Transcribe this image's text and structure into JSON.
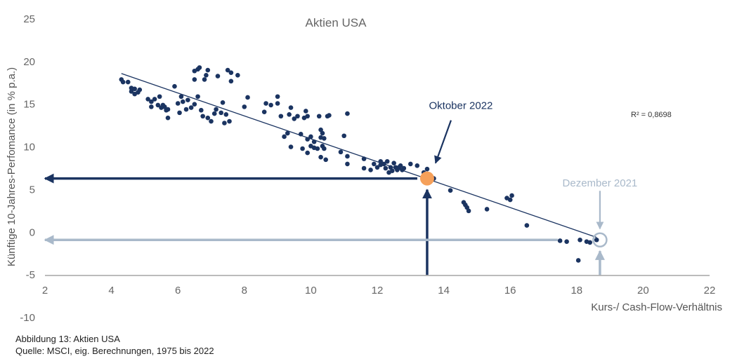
{
  "chart_data": {
    "type": "scatter",
    "title": "Aktien USA",
    "xlabel": "Kurs-/ Cash-Flow-Verhältnis",
    "ylabel": "Künftige 10-Jahres-Perfomance (in % p.a.)",
    "xlim": [
      2,
      22
    ],
    "ylim": [
      -10,
      25
    ],
    "x_ticks": [
      2,
      4,
      6,
      8,
      10,
      12,
      14,
      16,
      18,
      20,
      22
    ],
    "y_ticks": [
      -10,
      -5,
      0,
      5,
      10,
      15,
      20,
      25
    ],
    "grid": false,
    "r_squared_label": "R² = 0,8698",
    "trendline": {
      "x": [
        4.3,
        18.6
      ],
      "y": [
        18.6,
        -0.6
      ]
    },
    "series": [
      {
        "color": "#1b3461",
        "points": [
          [
            4.3,
            17.9
          ],
          [
            4.35,
            17.6
          ],
          [
            4.5,
            17.6
          ],
          [
            4.6,
            16.9
          ],
          [
            4.6,
            16.5
          ],
          [
            4.7,
            16.8
          ],
          [
            4.7,
            16.2
          ],
          [
            4.8,
            16.4
          ],
          [
            4.85,
            16.7
          ],
          [
            5.1,
            15.6
          ],
          [
            5.2,
            15.3
          ],
          [
            5.2,
            14.7
          ],
          [
            5.3,
            15.6
          ],
          [
            5.4,
            14.9
          ],
          [
            5.45,
            15.9
          ],
          [
            5.5,
            14.6
          ],
          [
            5.55,
            14.9
          ],
          [
            5.6,
            14.7
          ],
          [
            5.65,
            14.3
          ],
          [
            5.7,
            13.4
          ],
          [
            5.7,
            14.4
          ],
          [
            5.9,
            17.1
          ],
          [
            6.0,
            15.1
          ],
          [
            6.05,
            14.0
          ],
          [
            6.1,
            15.9
          ],
          [
            6.15,
            15.3
          ],
          [
            6.25,
            14.4
          ],
          [
            6.3,
            15.5
          ],
          [
            6.4,
            14.6
          ],
          [
            6.5,
            18.9
          ],
          [
            6.5,
            15.0
          ],
          [
            6.5,
            17.9
          ],
          [
            6.6,
            15.9
          ],
          [
            6.6,
            19.1
          ],
          [
            6.65,
            19.3
          ],
          [
            6.7,
            14.3
          ],
          [
            6.75,
            13.6
          ],
          [
            6.8,
            17.9
          ],
          [
            6.85,
            18.4
          ],
          [
            6.9,
            19.0
          ],
          [
            6.9,
            13.4
          ],
          [
            7.0,
            13.0
          ],
          [
            7.1,
            13.9
          ],
          [
            7.15,
            14.4
          ],
          [
            7.2,
            18.3
          ],
          [
            7.3,
            14.0
          ],
          [
            7.35,
            15.2
          ],
          [
            7.4,
            12.8
          ],
          [
            7.45,
            13.8
          ],
          [
            7.5,
            19.0
          ],
          [
            7.55,
            13.0
          ],
          [
            7.6,
            18.7
          ],
          [
            7.6,
            17.7
          ],
          [
            7.8,
            18.4
          ],
          [
            8.0,
            14.7
          ],
          [
            8.1,
            15.8
          ],
          [
            8.6,
            14.1
          ],
          [
            8.65,
            15.1
          ],
          [
            8.8,
            14.9
          ],
          [
            9.0,
            15.9
          ],
          [
            9.0,
            15.1
          ],
          [
            9.1,
            13.6
          ],
          [
            9.2,
            11.2
          ],
          [
            9.3,
            11.6
          ],
          [
            9.35,
            13.8
          ],
          [
            9.4,
            14.6
          ],
          [
            9.4,
            10.0
          ],
          [
            9.5,
            13.3
          ],
          [
            9.6,
            13.6
          ],
          [
            9.7,
            11.5
          ],
          [
            9.75,
            9.8
          ],
          [
            9.8,
            13.4
          ],
          [
            9.85,
            14.2
          ],
          [
            9.9,
            10.9
          ],
          [
            9.9,
            13.6
          ],
          [
            9.9,
            9.3
          ],
          [
            10.0,
            11.2
          ],
          [
            10.0,
            10.1
          ],
          [
            10.1,
            10.6
          ],
          [
            10.1,
            9.9
          ],
          [
            10.2,
            9.8
          ],
          [
            10.25,
            13.6
          ],
          [
            10.3,
            11.1
          ],
          [
            10.3,
            8.8
          ],
          [
            10.3,
            12.0
          ],
          [
            10.35,
            11.6
          ],
          [
            10.35,
            10.1
          ],
          [
            10.4,
            9.8
          ],
          [
            10.4,
            11.0
          ],
          [
            10.45,
            8.5
          ],
          [
            10.5,
            13.6
          ],
          [
            10.55,
            13.7
          ],
          [
            10.9,
            9.4
          ],
          [
            11.0,
            11.3
          ],
          [
            11.1,
            8.0
          ],
          [
            11.1,
            13.9
          ],
          [
            11.1,
            8.9
          ],
          [
            11.6,
            8.6
          ],
          [
            11.6,
            7.5
          ],
          [
            11.8,
            7.3
          ],
          [
            11.9,
            8.0
          ],
          [
            12.0,
            7.6
          ],
          [
            12.1,
            8.3
          ],
          [
            12.1,
            7.9
          ],
          [
            12.2,
            8.0
          ],
          [
            12.25,
            7.5
          ],
          [
            12.3,
            8.3
          ],
          [
            12.35,
            7.0
          ],
          [
            12.4,
            7.6
          ],
          [
            12.45,
            7.2
          ],
          [
            12.5,
            8.1
          ],
          [
            12.55,
            7.6
          ],
          [
            12.6,
            7.3
          ],
          [
            12.65,
            7.6
          ],
          [
            12.7,
            7.8
          ],
          [
            12.75,
            7.3
          ],
          [
            12.8,
            7.5
          ],
          [
            13.0,
            8.0
          ],
          [
            13.2,
            7.8
          ],
          [
            13.4,
            7.0
          ],
          [
            13.5,
            7.4
          ],
          [
            13.7,
            6.3
          ],
          [
            14.2,
            4.9
          ],
          [
            14.6,
            3.5
          ],
          [
            14.65,
            3.2
          ],
          [
            14.7,
            2.9
          ],
          [
            14.75,
            2.5
          ],
          [
            15.3,
            2.7
          ],
          [
            15.9,
            4.0
          ],
          [
            16.0,
            3.8
          ],
          [
            16.05,
            4.3
          ],
          [
            16.5,
            0.8
          ],
          [
            17.5,
            -1.0
          ],
          [
            17.7,
            -1.1
          ],
          [
            18.1,
            -0.9
          ],
          [
            18.3,
            -1.1
          ],
          [
            18.4,
            -1.2
          ],
          [
            18.6,
            -0.9
          ],
          [
            18.05,
            -3.3
          ]
        ]
      }
    ],
    "highlights": [
      {
        "label": "Oktober 2022",
        "x": 13.5,
        "y": 6.3,
        "color": "#f5a05a",
        "arrow_color": "#1b3461"
      },
      {
        "label": "Dezember 2021",
        "x": 18.7,
        "y": -0.9,
        "color": "#a9b9ca",
        "arrow_color": "#a9b9ca"
      }
    ]
  },
  "caption": {
    "figure": "Abbildung 13: Aktien USA",
    "source": "Quelle: MSCI, eig. Berechnungen, 1975 bis 2022"
  }
}
